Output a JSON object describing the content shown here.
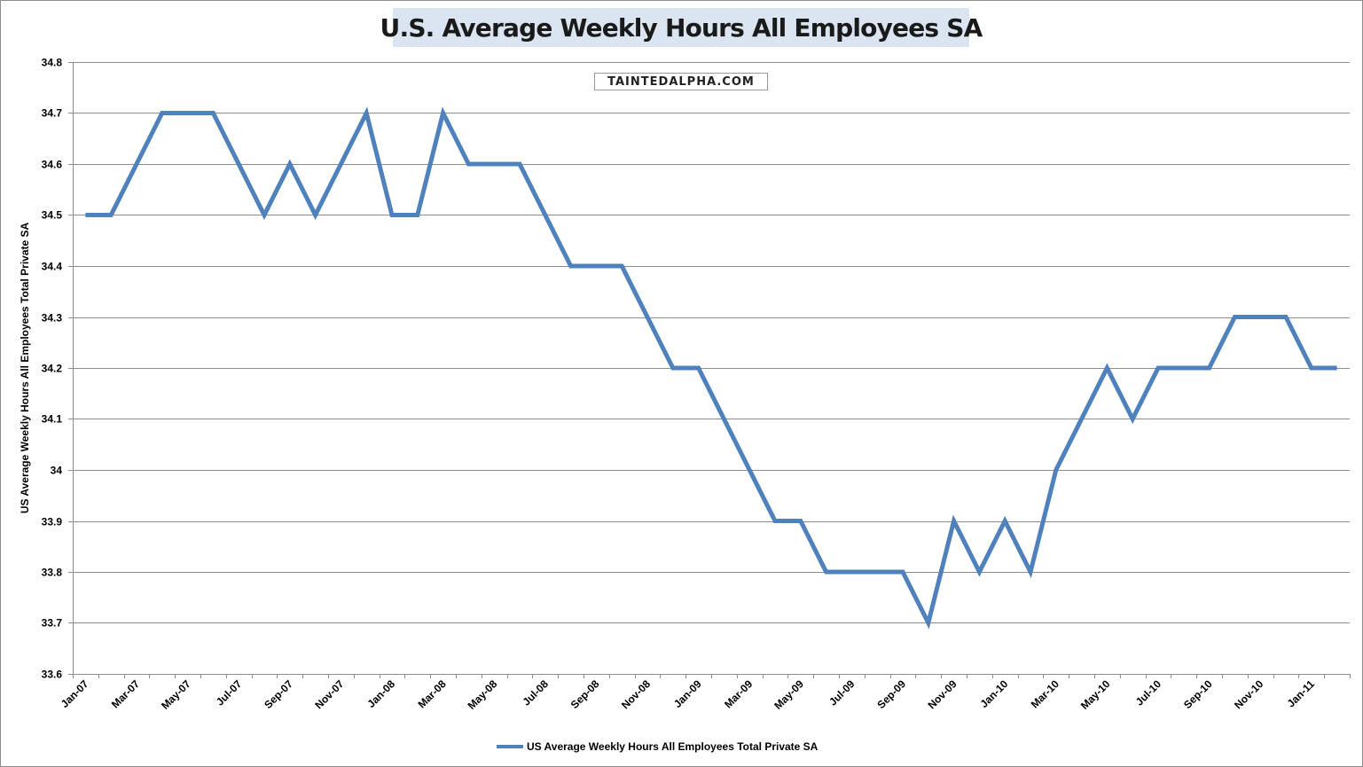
{
  "chart_data": {
    "type": "line",
    "title": "U.S. Average Weekly Hours All Employees SA",
    "watermark": "TAINTEDALPHA.COM",
    "ylabel": "US Average Weekly Hours All Employees Total Private SA",
    "xlabel": "",
    "ylim": [
      33.6,
      34.8
    ],
    "yticks": [
      33.6,
      33.7,
      33.8,
      33.9,
      34,
      34.1,
      34.2,
      34.3,
      34.4,
      34.5,
      34.6,
      34.7,
      34.8
    ],
    "ytick_labels": [
      "33.6",
      "33.7",
      "33.8",
      "33.9",
      "34",
      "34.1",
      "34.2",
      "34.3",
      "34.4",
      "34.5",
      "34.6",
      "34.7",
      "34.8"
    ],
    "grid": true,
    "legend": "bottom",
    "x": [
      "Jan-07",
      "Feb-07",
      "Mar-07",
      "Apr-07",
      "May-07",
      "Jun-07",
      "Jul-07",
      "Aug-07",
      "Sep-07",
      "Oct-07",
      "Nov-07",
      "Dec-07",
      "Jan-08",
      "Feb-08",
      "Mar-08",
      "Apr-08",
      "May-08",
      "Jun-08",
      "Jul-08",
      "Aug-08",
      "Sep-08",
      "Oct-08",
      "Nov-08",
      "Dec-08",
      "Jan-09",
      "Feb-09",
      "Mar-09",
      "Apr-09",
      "May-09",
      "Jun-09",
      "Jul-09",
      "Aug-09",
      "Sep-09",
      "Oct-09",
      "Nov-09",
      "Dec-09",
      "Jan-10",
      "Feb-10",
      "Mar-10",
      "Apr-10",
      "May-10",
      "Jun-10",
      "Jul-10",
      "Aug-10",
      "Sep-10",
      "Oct-10",
      "Nov-10",
      "Dec-10",
      "Jan-11",
      "Feb-11"
    ],
    "tick_labels": [
      "Jan-07",
      "Mar-07",
      "May-07",
      "Jul-07",
      "Sep-07",
      "Nov-07",
      "Jan-08",
      "Mar-08",
      "May-08",
      "Jul-08",
      "Sep-08",
      "Nov-08",
      "Jan-09",
      "Mar-09",
      "May-09",
      "Jul-09",
      "Sep-09",
      "Nov-09",
      "Jan-10",
      "Mar-10",
      "May-10",
      "Jul-10",
      "Sep-10",
      "Nov-10",
      "Jan-11"
    ],
    "series": [
      {
        "name": "US Average Weekly Hours All Employees Total Private SA",
        "color": "#4f81bd",
        "values": [
          34.5,
          34.5,
          34.6,
          34.7,
          34.7,
          34.7,
          34.6,
          34.5,
          34.6,
          34.5,
          34.6,
          34.7,
          34.5,
          34.5,
          34.7,
          34.6,
          34.6,
          34.6,
          34.5,
          34.4,
          34.4,
          34.4,
          34.3,
          34.2,
          34.2,
          34.1,
          34.0,
          33.9,
          33.9,
          33.8,
          33.8,
          33.8,
          33.8,
          33.7,
          33.9,
          33.8,
          33.9,
          33.8,
          34.0,
          34.1,
          34.2,
          34.1,
          34.2,
          34.2,
          34.2,
          34.3,
          34.3,
          34.3,
          34.2,
          34.2
        ]
      }
    ]
  }
}
